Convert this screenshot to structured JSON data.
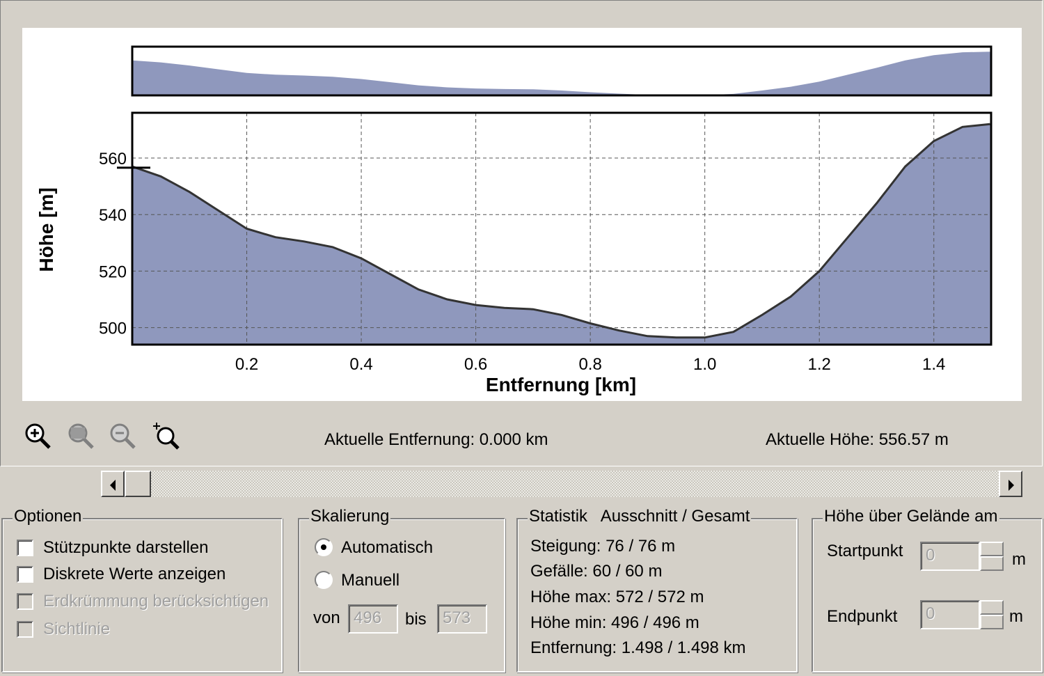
{
  "chart_data": {
    "type": "area",
    "xlabel": "Entfernung [km]",
    "ylabel": "Höhe [m]",
    "x_ticks": [
      "0.2",
      "0.4",
      "0.6",
      "0.8",
      "1.0",
      "1.2",
      "1.4"
    ],
    "y_ticks": [
      "500",
      "520",
      "540",
      "560"
    ],
    "xlim": [
      0,
      1.5
    ],
    "ylim": [
      494,
      576
    ],
    "grid": true,
    "x": [
      0,
      0.05,
      0.1,
      0.15,
      0.2,
      0.25,
      0.3,
      0.35,
      0.4,
      0.45,
      0.5,
      0.55,
      0.6,
      0.65,
      0.7,
      0.75,
      0.8,
      0.85,
      0.9,
      0.95,
      1.0,
      1.05,
      1.1,
      1.15,
      1.2,
      1.25,
      1.3,
      1.35,
      1.4,
      1.45,
      1.498
    ],
    "y": [
      557,
      553.5,
      548,
      541.5,
      535,
      532,
      530.5,
      528.5,
      524.5,
      519,
      513.5,
      510,
      508,
      507,
      506.5,
      504.5,
      501.5,
      499,
      497,
      496.5,
      496.5,
      498.5,
      504.5,
      511,
      520,
      532,
      544,
      557,
      566,
      571,
      572
    ],
    "current_marker": {
      "x": 0.0,
      "y": 556.57
    }
  },
  "toolbar": {
    "icons": [
      "zoom-in-icon",
      "zoom-out-icon",
      "zoom-previous-icon",
      "zoom-extent-icon"
    ]
  },
  "status": {
    "distance": "Aktuelle Entfernung: 0.000 km",
    "height": "Aktuelle Höhe: 556.57 m"
  },
  "options": {
    "title": "Optionen",
    "items": [
      {
        "label": "Stützpunkte darstellen",
        "checked": false,
        "enabled": true
      },
      {
        "label": "Diskrete Werte anzeigen",
        "checked": false,
        "enabled": true
      },
      {
        "label": "Erdkrümmung berücksichtigen",
        "checked": false,
        "enabled": false
      },
      {
        "label": "Sichtlinie",
        "checked": false,
        "enabled": false
      }
    ]
  },
  "scaling": {
    "title": "Skalierung",
    "auto_label": "Automatisch",
    "manual_label": "Manuell",
    "selected": "Automatisch",
    "from_label": "von",
    "from_value": "496",
    "to_label": "bis",
    "to_value": "573"
  },
  "statistics": {
    "title": "Statistik   Ausschnitt / Gesamt",
    "lines": [
      "Steigung: 76 / 76 m",
      "Gefälle: 60 / 60 m",
      "Höhe max: 572 / 572 m",
      "Höhe min: 496 / 496 m",
      "Entfernung: 1.498 / 1.498 km"
    ]
  },
  "height_above": {
    "title": "Höhe über Gelände am",
    "start_label": "Startpunkt",
    "start_value": "0",
    "end_label": "Endpunkt",
    "end_value": "0",
    "unit": "m"
  }
}
